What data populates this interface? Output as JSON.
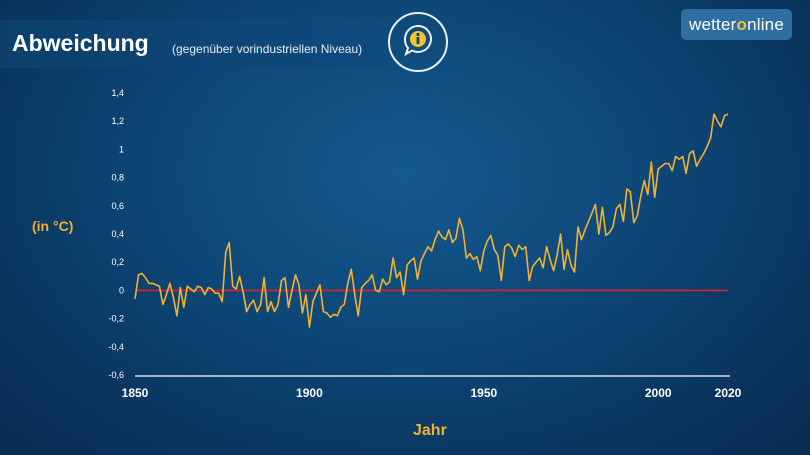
{
  "header": {
    "title": "Abweichung",
    "subtitle": "(gegenüber vorindustriellen Niveau)",
    "info_icon": "info-speech-bubble-icon"
  },
  "logo": {
    "part1": "wetter",
    "part2": "o",
    "part3": "nline"
  },
  "colors": {
    "line": "#f3b134",
    "baseline": "#e02020",
    "accent": "#f2c230"
  },
  "chart_data": {
    "type": "line",
    "title": "Abweichung",
    "subtitle": "(gegenüber vorindustriellen Niveau)",
    "xlabel": "Jahr",
    "ylabel": "(in °C)",
    "xlim": [
      1850,
      2020
    ],
    "ylim": [
      -0.6,
      1.4
    ],
    "x_ticks": [
      1850,
      1900,
      1950,
      2000,
      2020
    ],
    "y_ticks": [
      {
        "value": 1.4,
        "label": "1,4"
      },
      {
        "value": 1.2,
        "label": "1,2"
      },
      {
        "value": 1.0,
        "label": "1"
      },
      {
        "value": 0.8,
        "label": "0,8"
      },
      {
        "value": 0.6,
        "label": "0,6"
      },
      {
        "value": 0.4,
        "label": "0,4"
      },
      {
        "value": 0.2,
        "label": "0,2"
      },
      {
        "value": 0.0,
        "label": "0"
      },
      {
        "value": -0.2,
        "label": "-0,2"
      },
      {
        "value": -0.4,
        "label": "-0,4"
      },
      {
        "value": -0.6,
        "label": "-0,6"
      }
    ],
    "grid": false,
    "baseline": 0,
    "x": [
      1850,
      1851,
      1852,
      1853,
      1854,
      1855,
      1856,
      1857,
      1858,
      1859,
      1860,
      1861,
      1862,
      1863,
      1864,
      1865,
      1866,
      1867,
      1868,
      1869,
      1870,
      1871,
      1872,
      1873,
      1874,
      1875,
      1876,
      1877,
      1878,
      1879,
      1880,
      1881,
      1882,
      1883,
      1884,
      1885,
      1886,
      1887,
      1888,
      1889,
      1890,
      1891,
      1892,
      1893,
      1894,
      1895,
      1896,
      1897,
      1898,
      1899,
      1900,
      1901,
      1902,
      1903,
      1904,
      1905,
      1906,
      1907,
      1908,
      1909,
      1910,
      1911,
      1912,
      1913,
      1914,
      1915,
      1916,
      1917,
      1918,
      1919,
      1920,
      1921,
      1922,
      1923,
      1924,
      1925,
      1926,
      1927,
      1928,
      1929,
      1930,
      1931,
      1932,
      1933,
      1934,
      1935,
      1936,
      1937,
      1938,
      1939,
      1940,
      1941,
      1942,
      1943,
      1944,
      1945,
      1946,
      1947,
      1948,
      1949,
      1950,
      1951,
      1952,
      1953,
      1954,
      1955,
      1956,
      1957,
      1958,
      1959,
      1960,
      1961,
      1962,
      1963,
      1964,
      1965,
      1966,
      1967,
      1968,
      1969,
      1970,
      1971,
      1972,
      1973,
      1974,
      1975,
      1976,
      1977,
      1978,
      1979,
      1980,
      1981,
      1982,
      1983,
      1984,
      1985,
      1986,
      1987,
      1988,
      1989,
      1990,
      1991,
      1992,
      1993,
      1994,
      1995,
      1996,
      1997,
      1998,
      1999,
      2000,
      2001,
      2002,
      2003,
      2004,
      2005,
      2006,
      2007,
      2008,
      2009,
      2010,
      2011,
      2012,
      2013,
      2014,
      2015,
      2016,
      2017,
      2018,
      2019,
      2020
    ],
    "series": [
      {
        "values": [
          -0.06,
          0.11,
          0.12,
          0.09,
          0.05,
          0.05,
          0.04,
          0.03,
          -0.1,
          -0.03,
          0.05,
          -0.05,
          -0.18,
          0.02,
          -0.12,
          0.03,
          0.01,
          -0.01,
          0.03,
          0.02,
          -0.03,
          0.02,
          0.01,
          -0.02,
          -0.02,
          -0.08,
          0.27,
          0.34,
          0.03,
          0.01,
          0.1,
          -0.01,
          -0.15,
          -0.1,
          -0.07,
          -0.15,
          -0.1,
          0.09,
          -0.15,
          -0.08,
          -0.15,
          -0.1,
          0.07,
          0.09,
          -0.12,
          0.0,
          0.11,
          0.04,
          -0.16,
          -0.03,
          -0.26,
          -0.08,
          -0.02,
          0.04,
          -0.15,
          -0.16,
          -0.19,
          -0.17,
          -0.18,
          -0.12,
          -0.1,
          0.05,
          0.15,
          -0.03,
          -0.18,
          0.02,
          0.05,
          0.07,
          0.11,
          0.0,
          -0.01,
          0.08,
          0.04,
          0.06,
          0.23,
          0.09,
          0.13,
          -0.03,
          0.18,
          0.21,
          0.23,
          0.08,
          0.21,
          0.26,
          0.31,
          0.28,
          0.36,
          0.42,
          0.38,
          0.36,
          0.43,
          0.34,
          0.37,
          0.51,
          0.43,
          0.23,
          0.26,
          0.22,
          0.24,
          0.14,
          0.28,
          0.35,
          0.39,
          0.29,
          0.25,
          0.07,
          0.31,
          0.33,
          0.3,
          0.24,
          0.32,
          0.29,
          0.31,
          0.07,
          0.17,
          0.2,
          0.23,
          0.16,
          0.31,
          0.22,
          0.14,
          0.25,
          0.4,
          0.15,
          0.29,
          0.18,
          0.13,
          0.45,
          0.36,
          0.43,
          0.49,
          0.55,
          0.61,
          0.4,
          0.59,
          0.39,
          0.41,
          0.45,
          0.58,
          0.61,
          0.49,
          0.72,
          0.7,
          0.48,
          0.53,
          0.67,
          0.78,
          0.68,
          0.91,
          0.66,
          0.86,
          0.88,
          0.9,
          0.9,
          0.85,
          0.95,
          0.93,
          0.95,
          0.83,
          0.97,
          0.99,
          0.88,
          0.93,
          0.97,
          1.02,
          1.08,
          1.25,
          1.2,
          1.16,
          1.24,
          1.25
        ]
      }
    ]
  }
}
